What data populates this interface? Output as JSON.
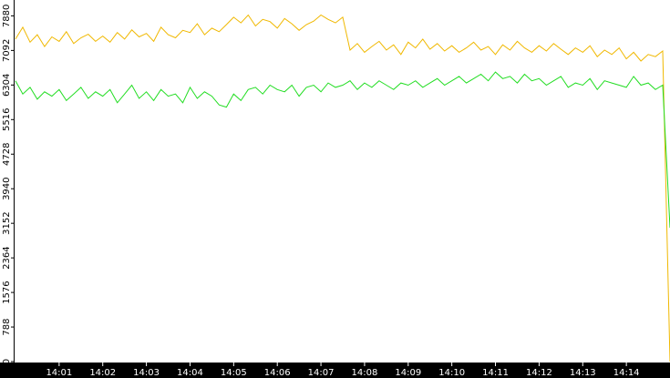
{
  "chart_data": {
    "type": "line",
    "categories": [
      null,
      null,
      null,
      null,
      null,
      null,
      "14:01",
      null,
      null,
      null,
      null,
      null,
      "14:02",
      null,
      null,
      null,
      null,
      null,
      "14:03",
      null,
      null,
      null,
      null,
      null,
      "14:04",
      null,
      null,
      null,
      null,
      null,
      "14:05",
      null,
      null,
      null,
      null,
      null,
      "14:06",
      null,
      null,
      null,
      null,
      null,
      "14:07",
      null,
      null,
      null,
      null,
      null,
      "14:08",
      null,
      null,
      null,
      null,
      null,
      "14:09",
      null,
      null,
      null,
      null,
      null,
      "14:10",
      null,
      null,
      null,
      null,
      null,
      "14:11",
      null,
      null,
      null,
      null,
      null,
      "14:12",
      null,
      null,
      null,
      null,
      null,
      "14:13",
      null,
      null,
      null,
      null,
      null,
      "14:14",
      null,
      null,
      null,
      null,
      null,
      null
    ],
    "series": [
      {
        "color": "#f0b800",
        "values": [
          7350,
          7620,
          7280,
          7450,
          7180,
          7400,
          7300,
          7520,
          7250,
          7380,
          7460,
          7300,
          7420,
          7280,
          7500,
          7350,
          7560,
          7400,
          7480,
          7300,
          7620,
          7450,
          7380,
          7550,
          7500,
          7700,
          7450,
          7600,
          7520,
          7680,
          7850,
          7720,
          7900,
          7650,
          7800,
          7750,
          7600,
          7820,
          7700,
          7550,
          7680,
          7760,
          7900,
          7800,
          7720,
          7850,
          7100,
          7250,
          7050,
          7180,
          7300,
          7100,
          7220,
          7000,
          7280,
          7150,
          7350,
          7120,
          7250,
          7080,
          7200,
          7050,
          7150,
          7280,
          7100,
          7180,
          7000,
          7220,
          7100,
          7300,
          7150,
          7050,
          7200,
          7080,
          7250,
          7120,
          7000,
          7150,
          7050,
          7200,
          6950,
          7100,
          7000,
          7150,
          6900,
          7050,
          6850,
          7000,
          6950,
          7080,
          0
        ]
      },
      {
        "color": "#22dd22",
        "values": [
          6400,
          6100,
          6250,
          5980,
          6150,
          6050,
          6200,
          5950,
          6100,
          6250,
          6000,
          6150,
          6050,
          6200,
          5900,
          6100,
          6300,
          6000,
          6150,
          5950,
          6200,
          6050,
          6100,
          5900,
          6250,
          6000,
          6150,
          6050,
          5850,
          5800,
          6100,
          5950,
          6200,
          6250,
          6100,
          6300,
          6200,
          6150,
          6300,
          6050,
          6250,
          6300,
          6150,
          6350,
          6250,
          6300,
          6400,
          6200,
          6350,
          6250,
          6400,
          6300,
          6200,
          6350,
          6300,
          6400,
          6250,
          6350,
          6450,
          6300,
          6400,
          6500,
          6350,
          6450,
          6550,
          6400,
          6600,
          6450,
          6500,
          6350,
          6550,
          6400,
          6450,
          6300,
          6400,
          6500,
          6250,
          6350,
          6300,
          6450,
          6200,
          6400,
          6350,
          6300,
          6250,
          6500,
          6300,
          6350,
          6200,
          6300,
          3050
        ]
      }
    ],
    "ylim": [
      0,
      8200
    ],
    "yticks": [
      0,
      788,
      1576,
      2364,
      3152,
      3940,
      4728,
      5516,
      6304,
      7092,
      7880
    ]
  }
}
